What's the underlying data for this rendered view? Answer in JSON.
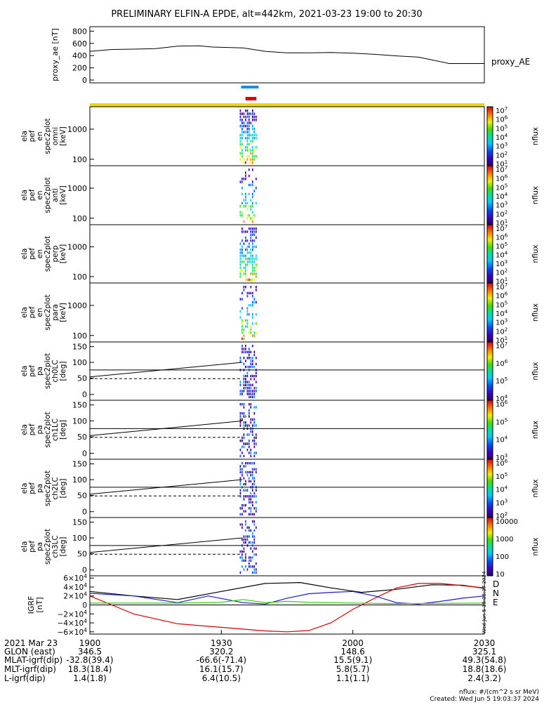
{
  "title": "PRELIMINARY ELFIN-A EPDE, alt=442km, 2021-03-23 19:00 to 20:30",
  "colors": {
    "axis": "#000000",
    "science_bar": "#1a8fe0",
    "epd_bar": "#e00000",
    "sunlit_bar": "#f2d400",
    "igrf_d": "#d10000",
    "igrf_n": "#1a1ad0",
    "igrf_e": "#2ecc00",
    "igrf_total": "#000000"
  },
  "chart_data": [
    {
      "type": "line",
      "name": "proxy_ae",
      "ylabel": "proxy_ae [nT]",
      "legend": "proxy_AE",
      "y_ticks": [
        "800",
        "600",
        "400",
        "200",
        "0"
      ],
      "ylim": [
        0,
        850
      ],
      "xlim": [
        0,
        90
      ],
      "x": [
        0,
        5,
        10,
        15,
        20,
        25,
        28,
        35,
        40,
        45,
        50,
        55,
        60,
        65,
        70,
        75,
        78,
        82,
        90
      ],
      "values": [
        470,
        500,
        505,
        515,
        555,
        560,
        540,
        525,
        470,
        445,
        445,
        450,
        440,
        420,
        395,
        375,
        330,
        270,
        270
      ]
    },
    {
      "type": "heatmap",
      "name": "omni_spectrogram",
      "ylabel_lines": [
        "ela",
        "pef",
        "en",
        "spec2plot",
        "omni",
        "[keV]"
      ],
      "y_ticks": [
        "1000",
        "100"
      ],
      "colorbar_ticks": [
        "10^7",
        "10^6",
        "10^5",
        "10^4",
        "10^3",
        "10^2",
        "10^1"
      ],
      "colorbar_label": "nflux"
    },
    {
      "type": "heatmap",
      "name": "anti_spectrogram",
      "ylabel_lines": [
        "ela",
        "pef",
        "en",
        "spec2plot",
        "anti",
        "[keV]"
      ],
      "y_ticks": [
        "1000",
        "100"
      ],
      "colorbar_ticks": [
        "10^7",
        "10^6",
        "10^5",
        "10^4",
        "10^3",
        "10^2",
        "10^1"
      ],
      "colorbar_label": "nflux"
    },
    {
      "type": "heatmap",
      "name": "perp_spectrogram",
      "ylabel_lines": [
        "ela",
        "pef",
        "en",
        "spec2plot",
        "perp",
        "[keV]"
      ],
      "y_ticks": [
        "1000",
        "100"
      ],
      "colorbar_ticks": [
        "10^7",
        "10^6",
        "10^5",
        "10^4",
        "10^3",
        "10^2",
        "10^1"
      ],
      "colorbar_label": "nflux"
    },
    {
      "type": "heatmap",
      "name": "para_spectrogram",
      "ylabel_lines": [
        "ela",
        "pef",
        "en",
        "spec2plot",
        "para",
        "[keV]"
      ],
      "y_ticks": [
        "1000",
        "100"
      ],
      "colorbar_ticks": [
        "10^7",
        "10^6",
        "10^5",
        "10^4",
        "10^3",
        "10^2",
        "10^1"
      ],
      "colorbar_label": "nflux"
    },
    {
      "type": "heatmap",
      "name": "ch0LC_pitch_angle",
      "ylabel_lines": [
        "ela",
        "pef",
        "pa",
        "spec2plot",
        "ch0LC",
        "[deg]"
      ],
      "y_ticks": [
        "150",
        "100",
        "50",
        "0"
      ],
      "colorbar_ticks": [
        "10^7",
        "10^6",
        "10^5",
        "10^4"
      ],
      "colorbar_label": "nflux"
    },
    {
      "type": "heatmap",
      "name": "ch1LC_pitch_angle",
      "ylabel_lines": [
        "ela",
        "pef",
        "pa",
        "spec2plot",
        "ch1LC",
        "[deg]"
      ],
      "y_ticks": [
        "150",
        "100",
        "50",
        "0"
      ],
      "colorbar_ticks": [
        "10^6",
        "10^5",
        "10^4",
        "10^3"
      ],
      "colorbar_label": "nflux"
    },
    {
      "type": "heatmap",
      "name": "ch2LC_pitch_angle",
      "ylabel_lines": [
        "ela",
        "pef",
        "pa",
        "spec2plot",
        "ch2LC",
        "[deg]"
      ],
      "y_ticks": [
        "150",
        "100",
        "50",
        "0"
      ],
      "colorbar_ticks": [
        "10^6",
        "10^5",
        "10^4",
        "10^3",
        "10^2"
      ],
      "colorbar_label": "nflux"
    },
    {
      "type": "heatmap",
      "name": "ch3LC_pitch_angle",
      "ylabel_lines": [
        "ela",
        "pef",
        "pa",
        "spec2plot",
        "ch3LC",
        "[deg]"
      ],
      "y_ticks": [
        "150",
        "100",
        "50",
        "0"
      ],
      "colorbar_ticks": [
        "10000",
        "1000",
        "100",
        "10"
      ],
      "colorbar_label": "nflux"
    },
    {
      "type": "line",
      "name": "igrf",
      "ylabel_lines": [
        "IGRF",
        "[nT]"
      ],
      "y_ticks": [
        "6×10^4",
        "4×10^4",
        "2×10^4",
        "0",
        "−2×10^4",
        "−4×10^4",
        "−6×10^4"
      ],
      "ylim": [
        -65000,
        65000
      ],
      "xlim": [
        0,
        90
      ],
      "legend": [
        "D",
        "N",
        "E"
      ],
      "series": [
        {
          "name": "total",
          "x": [
            0,
            10,
            20,
            30,
            40,
            48,
            55,
            62,
            70,
            78,
            85,
            90
          ],
          "values": [
            30000,
            20000,
            12000,
            30000,
            48000,
            50000,
            38000,
            28000,
            35000,
            45000,
            44000,
            37000
          ]
        },
        {
          "name": "D",
          "x": [
            0,
            5,
            10,
            20,
            30,
            40,
            45,
            50,
            55,
            60,
            65,
            70,
            75,
            80,
            85,
            90
          ],
          "values": [
            20000,
            0,
            -20000,
            -42000,
            -50000,
            -58000,
            -60000,
            -57000,
            -40000,
            -10000,
            15000,
            38000,
            48000,
            48000,
            43000,
            38000
          ]
        },
        {
          "name": "N",
          "x": [
            0,
            10,
            20,
            27,
            35,
            40,
            45,
            50,
            55,
            60,
            65,
            70,
            75,
            80,
            85,
            90
          ],
          "values": [
            26000,
            20000,
            5000,
            20000,
            5000,
            2000,
            15000,
            25000,
            28000,
            30000,
            20000,
            5000,
            2000,
            8000,
            15000,
            20000
          ]
        },
        {
          "name": "E",
          "x": [
            0,
            20,
            30,
            35,
            40,
            45,
            50,
            60,
            70,
            80,
            90
          ],
          "values": [
            4000,
            4000,
            6000,
            12000,
            5000,
            8000,
            6000,
            4000,
            3000,
            3500,
            4000
          ]
        }
      ]
    }
  ],
  "epoch_bars": {
    "science_zone": [
      34.5,
      38.5
    ],
    "epd_collection": [
      35.5,
      38.0
    ]
  },
  "side_stamp": "Wed Jun  5 19:03:37 2024",
  "x_axis": {
    "row_labels": [
      "2021 Mar 23",
      "GLON (east)",
      "MLAT-igrf(dip)",
      "MLT-igrf(dip)",
      "L-igrf(dip)"
    ],
    "columns": [
      {
        "time": "1900",
        "glon": "346.5",
        "mlat": "-32.8(39.4)",
        "mlt": "18.3(18.4)",
        "l": "1.4(1.8)"
      },
      {
        "time": "1930",
        "glon": "320.2",
        "mlat": "-66.6(-71.4)",
        "mlt": "16.1(15.7)",
        "l": "6.4(10.5)"
      },
      {
        "time": "2000",
        "glon": "148.6",
        "mlat": "15.5(9.1)",
        "mlt": "5.8(5.7)",
        "l": "1.1(1.1)"
      },
      {
        "time": "2030",
        "glon": "325.1",
        "mlat": "49.3(54.8)",
        "mlt": "18.8(18.6)",
        "l": "2.4(3.2)"
      }
    ]
  },
  "footer": {
    "units": "nflux: #/(cm^2 s sr MeV)",
    "created": "Created: Wed Jun  5 19:03:37 2024"
  }
}
